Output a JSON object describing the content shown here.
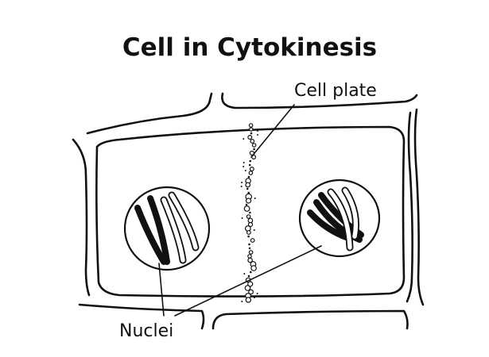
{
  "diagram": {
    "title": "Cell in Cytokinesis",
    "labels": {
      "cell_plate": "Cell plate",
      "nuclei": "Nuclei"
    }
  }
}
